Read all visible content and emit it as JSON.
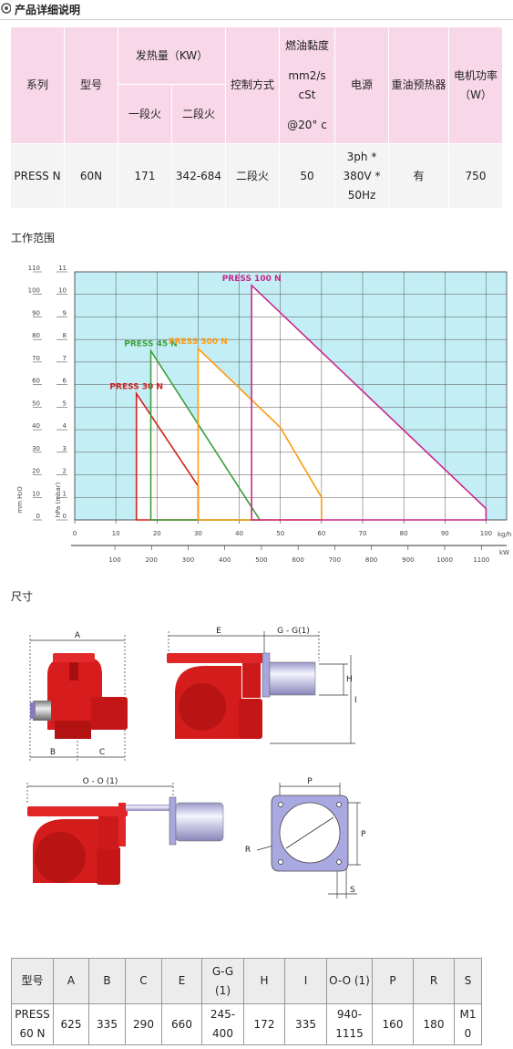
{
  "header": {
    "title": "产品详细说明"
  },
  "table1": {
    "header": {
      "series": "系列",
      "model": "型号",
      "heat_output": "发热量（KW）",
      "stage1": "一段火",
      "stage2": "二段火",
      "control": "控制方式",
      "viscosity": [
        "燃油黏度",
        "mm2/s",
        "cSt",
        "@20° c"
      ],
      "power_supply": "电源",
      "preheater": "重油预热器",
      "motor_power": "电机功率（W）"
    },
    "rows": [
      [
        "PRESS N",
        "60N",
        "171",
        "342-684",
        "二段火",
        "50",
        "3ph * 380V * 50Hz",
        "有",
        "750"
      ]
    ]
  },
  "section_range": "工作范围",
  "chart_data": {
    "type": "line",
    "xlabel": "kg/h",
    "x2label": "kW",
    "ylabel": "mm H₂O",
    "y2label": "hPa (mbar)",
    "xlim": [
      0,
      105
    ],
    "xticks": [
      0,
      10,
      20,
      30,
      40,
      50,
      60,
      70,
      80,
      90,
      100
    ],
    "x2lim": [
      -9.5,
      1169
    ],
    "x2ticks": [
      100,
      200,
      300,
      400,
      500,
      600,
      700,
      800,
      900,
      1000,
      1100
    ],
    "ylim": [
      0,
      110
    ],
    "yticks": [
      0,
      10,
      20,
      30,
      40,
      50,
      60,
      70,
      80,
      90,
      100,
      110
    ],
    "y2lim": [
      0,
      11
    ],
    "y2ticks": [
      0,
      1,
      2,
      3,
      4,
      5,
      6,
      7,
      8,
      9,
      10,
      11
    ],
    "grid": true,
    "background": "#c4eef5",
    "series": [
      {
        "name": "PRESS 30 N",
        "color": "#d42020",
        "x": [
          15,
          15,
          30,
          30
        ],
        "values": [
          0,
          56,
          15,
          0
        ]
      },
      {
        "name": "PRESS 45 N",
        "color": "#3aa03a",
        "x": [
          18.5,
          18.5,
          45,
          18.5
        ],
        "values": [
          0,
          75,
          0,
          0
        ]
      },
      {
        "name": "PRESS 300 N",
        "color": "#ff9a10",
        "x": [
          30,
          30,
          50,
          60,
          60
        ],
        "values": [
          0,
          76,
          41,
          10,
          0
        ]
      },
      {
        "name": "PRESS 100 N",
        "color": "#c8288c",
        "x": [
          43,
          43,
          100,
          100
        ],
        "values": [
          0,
          104,
          5,
          0
        ]
      }
    ]
  },
  "section_dimensions": "尺寸",
  "dimensions": {
    "labels": [
      "A",
      "B",
      "C",
      "E",
      "G - G(1)",
      "H",
      "I",
      "O - O (1)",
      "P",
      "P",
      "R",
      "S"
    ]
  },
  "table2": {
    "header": [
      "型号",
      "A",
      "B",
      "C",
      "E",
      "G-G (1)",
      "H",
      "I",
      "O-O (1)",
      "P",
      "R",
      "S"
    ],
    "rows": [
      [
        "PRESS 60 N",
        "625",
        "335",
        "290",
        "660",
        "245-400",
        "172",
        "335",
        "940-1115",
        "160",
        "180",
        "M10"
      ]
    ]
  }
}
